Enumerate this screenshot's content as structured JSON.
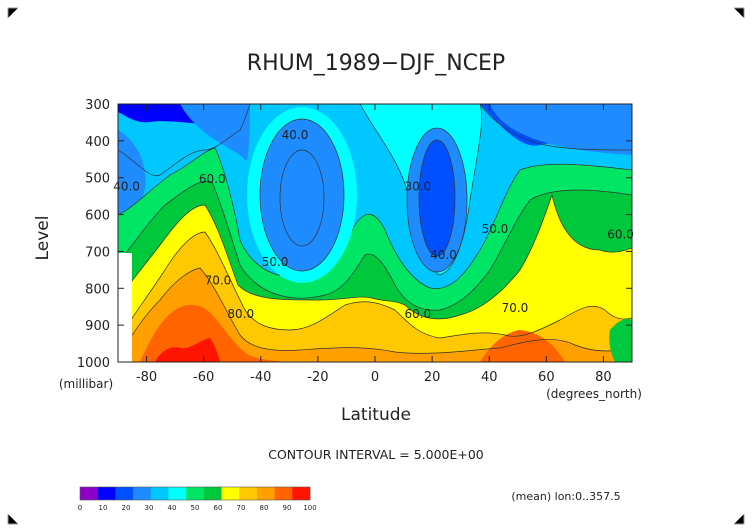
{
  "chart_data": {
    "type": "heatmap",
    "title": "RHUM_1989−DJF_NCEP",
    "xlabel": "Latitude",
    "ylabel": "Level",
    "x_units": "(degrees_north)",
    "y_units": "(millibar)",
    "xlim": [
      -90,
      90
    ],
    "ylim": [
      1000,
      300
    ],
    "x_ticks": [
      -80,
      -60,
      -40,
      -20,
      0,
      20,
      40,
      60,
      80
    ],
    "y_ticks": [
      300,
      400,
      500,
      600,
      700,
      800,
      900,
      1000
    ],
    "contour_interval_text": "CONTOUR INTERVAL = 5.000E+00",
    "subtitle_right": "(mean) lon:0..357.5",
    "legend": {
      "ticks": [
        0,
        10,
        20,
        30,
        40,
        50,
        60,
        70,
        80,
        90,
        100
      ],
      "colors": [
        "#8c00c8",
        "#0000ff",
        "#0050ff",
        "#1e8cff",
        "#00c8ff",
        "#00ffff",
        "#00e664",
        "#00c83c",
        "#ffff00",
        "#ffc800",
        "#ffa000",
        "#ff6400",
        "#ff1400"
      ],
      "placement": "bottom-left"
    },
    "contour_labels": [
      {
        "text": "40.0",
        "lat": -28,
        "lev": 395
      },
      {
        "text": "40.0",
        "lat": -87,
        "lev": 535
      },
      {
        "text": "60.0",
        "lat": -57,
        "lev": 515
      },
      {
        "text": "50.0",
        "lat": -35,
        "lev": 740
      },
      {
        "text": "70.0",
        "lat": -55,
        "lev": 790
      },
      {
        "text": "80.0",
        "lat": -47,
        "lev": 880
      },
      {
        "text": "30.0",
        "lat": 15,
        "lev": 535
      },
      {
        "text": "40.0",
        "lat": 24,
        "lev": 720
      },
      {
        "text": "50.0",
        "lat": 42,
        "lev": 650
      },
      {
        "text": "60.0",
        "lat": 15,
        "lev": 880
      },
      {
        "text": "70.0",
        "lat": 49,
        "lev": 865
      },
      {
        "text": "60.0",
        "lat": 86,
        "lev": 665
      }
    ]
  }
}
